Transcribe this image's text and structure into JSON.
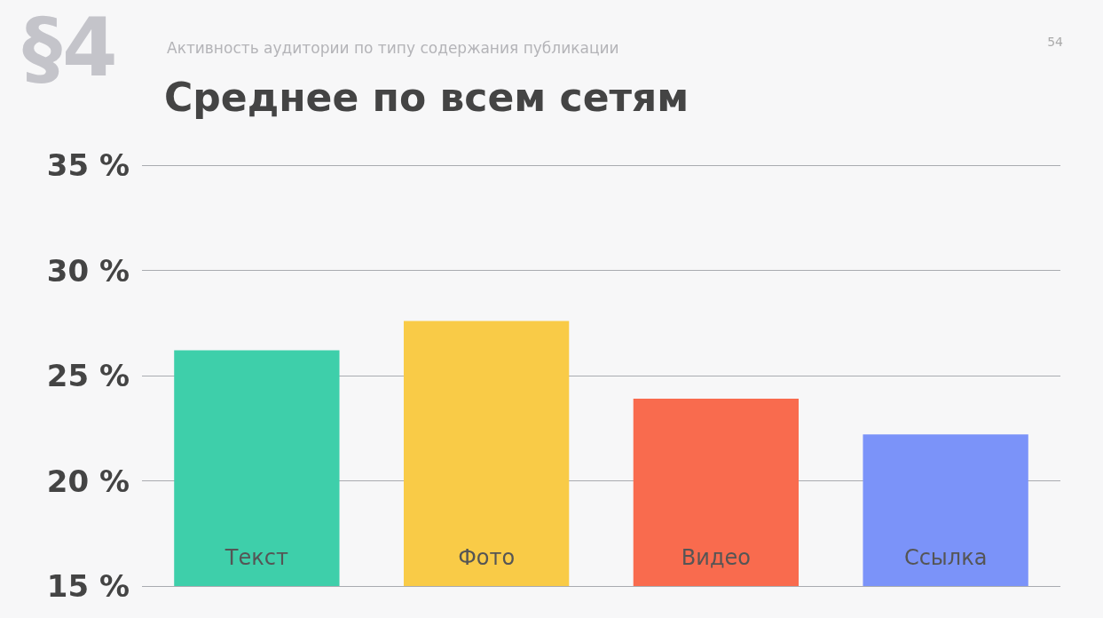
{
  "chart_data": {
    "type": "bar",
    "subtitle": "Активность аудитории по типу содержания публикации",
    "title": "Среднее по всем сетям",
    "annotations": [
      "§4",
      "54"
    ],
    "categories": [
      "Текст",
      "Фото",
      "Видео",
      "Ссылка"
    ],
    "values": [
      26.2,
      27.6,
      23.9,
      22.2
    ],
    "colors": [
      "#3ecfaa",
      "#f9cb47",
      "#f96b4e",
      "#7b93f9"
    ],
    "ylim": [
      15,
      35
    ],
    "yticks": [
      {
        "value": 15,
        "label": "15 %"
      },
      {
        "value": 20,
        "label": "20 %"
      },
      {
        "value": 25,
        "label": "25 %"
      },
      {
        "value": 30,
        "label": "30 %"
      },
      {
        "value": 35,
        "label": "35 %"
      }
    ],
    "grid": "y"
  }
}
